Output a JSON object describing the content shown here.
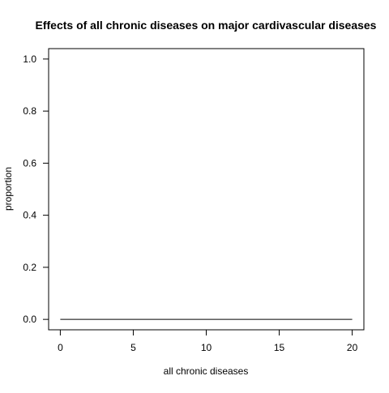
{
  "chart_data": {
    "type": "line",
    "title": "Effects of all chronic diseases on major cardivascular diseases",
    "xlabel": "all chronic diseases",
    "ylabel": "proportion",
    "xlim": [
      -0.8,
      20.8
    ],
    "ylim": [
      -0.04,
      1.04
    ],
    "x_ticks": [
      0,
      5,
      10,
      15,
      20
    ],
    "x_tick_labels": [
      "0",
      "5",
      "10",
      "15",
      "20"
    ],
    "y_ticks": [
      0.0,
      0.2,
      0.4,
      0.6,
      0.8,
      1.0
    ],
    "y_tick_labels": [
      "0.0",
      "0.2",
      "0.4",
      "0.6",
      "0.8",
      "1.0"
    ],
    "grid": false,
    "series": [
      {
        "color": "#000000",
        "x": [
          0,
          1,
          2,
          3,
          4,
          5,
          6,
          7,
          8,
          9,
          10,
          11,
          12,
          13,
          14,
          15,
          16,
          17,
          18,
          19,
          20
        ],
        "y": [
          0,
          0,
          0,
          0,
          0,
          0,
          0,
          0,
          0,
          0,
          0,
          0,
          0,
          0,
          0,
          0,
          0,
          0,
          0,
          0,
          0
        ]
      }
    ]
  }
}
